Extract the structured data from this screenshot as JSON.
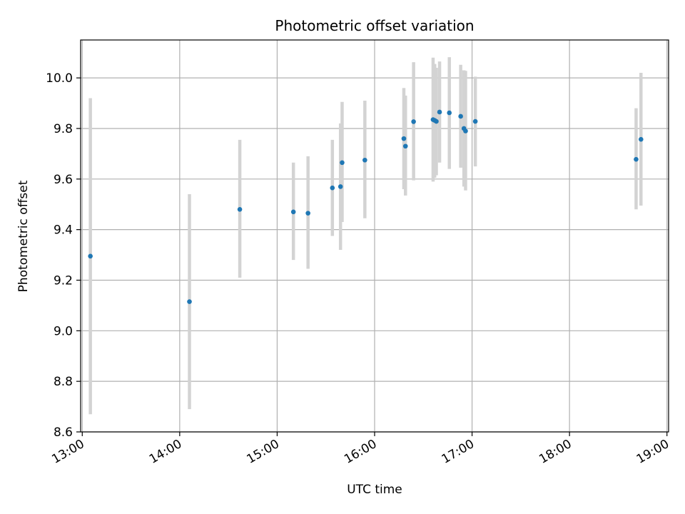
{
  "chart_data": {
    "type": "scatter",
    "title": "Photometric offset variation",
    "xlabel": "UTC time",
    "ylabel": "Photometric offset",
    "x_ticks": [
      "13:00",
      "14:00",
      "15:00",
      "16:00",
      "17:00",
      "18:00",
      "19:00"
    ],
    "y_ticks": [
      "8.6",
      "8.8",
      "9.0",
      "9.2",
      "9.4",
      "9.6",
      "9.8",
      "10.0"
    ],
    "xlim": [
      "12:59",
      "19:01"
    ],
    "ylim": [
      8.6,
      10.15
    ],
    "grid": true,
    "marker_color": "#1f77b4",
    "errorbar_color": "#d3d3d3",
    "points": [
      {
        "time": "13:05",
        "y": 9.295,
        "low": 8.67,
        "high": 9.92
      },
      {
        "time": "14:06",
        "y": 9.115,
        "low": 8.69,
        "high": 9.54
      },
      {
        "time": "14:37",
        "y": 9.48,
        "low": 9.21,
        "high": 9.755
      },
      {
        "time": "15:10",
        "y": 9.47,
        "low": 9.28,
        "high": 9.665
      },
      {
        "time": "15:19",
        "y": 9.465,
        "low": 9.245,
        "high": 9.69
      },
      {
        "time": "15:34",
        "y": 9.565,
        "low": 9.375,
        "high": 9.755
      },
      {
        "time": "15:39",
        "y": 9.57,
        "low": 9.32,
        "high": 9.82
      },
      {
        "time": "15:40",
        "y": 9.665,
        "low": 9.43,
        "high": 9.905
      },
      {
        "time": "15:54",
        "y": 9.675,
        "low": 9.445,
        "high": 9.91
      },
      {
        "time": "16:18",
        "y": 9.76,
        "low": 9.56,
        "high": 9.96
      },
      {
        "time": "16:19",
        "y": 9.73,
        "low": 9.535,
        "high": 9.93
      },
      {
        "time": "16:24",
        "y": 9.827,
        "low": 9.595,
        "high": 10.062
      },
      {
        "time": "16:36",
        "y": 9.835,
        "low": 9.59,
        "high": 10.08
      },
      {
        "time": "16:37",
        "y": 9.832,
        "low": 9.605,
        "high": 10.055
      },
      {
        "time": "16:38",
        "y": 9.828,
        "low": 9.615,
        "high": 10.04
      },
      {
        "time": "16:40",
        "y": 9.865,
        "low": 9.665,
        "high": 10.065
      },
      {
        "time": "16:46",
        "y": 9.862,
        "low": 9.64,
        "high": 10.082
      },
      {
        "time": "16:53",
        "y": 9.848,
        "low": 9.645,
        "high": 10.052
      },
      {
        "time": "16:55",
        "y": 9.8,
        "low": 9.57,
        "high": 10.03
      },
      {
        "time": "16:56",
        "y": 9.79,
        "low": 9.555,
        "high": 10.028
      },
      {
        "time": "17:02",
        "y": 9.828,
        "low": 9.65,
        "high": 10.005
      },
      {
        "time": "18:41",
        "y": 9.678,
        "low": 9.48,
        "high": 9.88
      },
      {
        "time": "18:44",
        "y": 9.757,
        "low": 9.495,
        "high": 10.02
      }
    ]
  }
}
